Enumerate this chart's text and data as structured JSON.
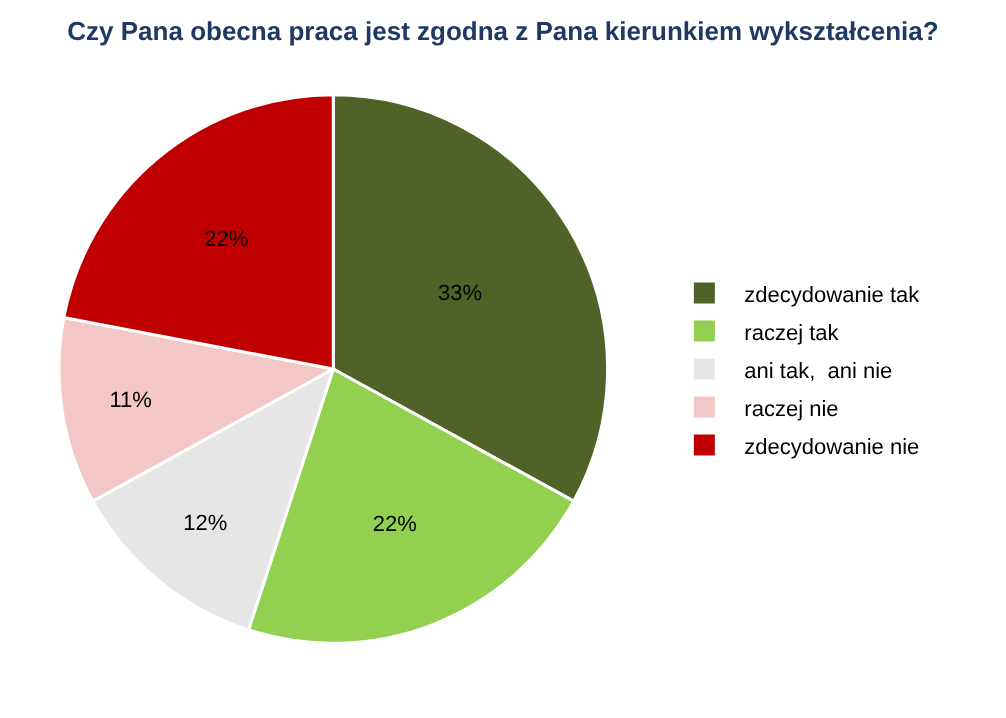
{
  "chart_data": {
    "type": "pie",
    "title": "Czy Pana obecna praca jest zgodna z Pana kierunkiem wykształcenia?",
    "categories": [
      "zdecydowanie tak",
      "raczej tak",
      "ani tak,  ani nie",
      "raczej nie",
      "zdecydowanie nie"
    ],
    "values": [
      33,
      22,
      12,
      11,
      22
    ],
    "colors": [
      "#4f6228",
      "#92d050",
      "#e6e6e6",
      "#f4c7c7",
      "#c00000"
    ],
    "value_labels": [
      "33%",
      "22%",
      "12%",
      "11%",
      "22%"
    ],
    "legend": "right"
  }
}
